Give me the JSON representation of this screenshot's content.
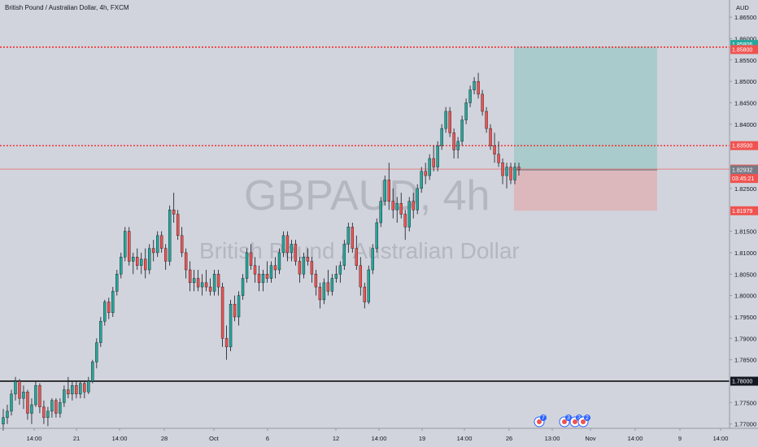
{
  "header": {
    "title": "British Pound / Australian Dollar, 4h, FXCM"
  },
  "watermark": {
    "symbol": "GBPAUD, 4h",
    "name": "British Pound / Australian Dollar"
  },
  "currency": "AUD",
  "colors": {
    "bg": "#d1d4dc",
    "up": "#26a69a",
    "down": "#ef5350",
    "wick": "#131722",
    "level": "#ff0000",
    "support": "#000000",
    "target_zone": "#a9cbcb",
    "stop_zone": "#dcb8bd"
  },
  "chart_data": {
    "type": "candlestick",
    "symbol": "GBPAUD",
    "timeframe": "4h",
    "ylim": [
      1.769,
      1.869
    ],
    "y_ticks": [
      1.77,
      1.775,
      1.785,
      1.79,
      1.795,
      1.8,
      1.805,
      1.81,
      1.815,
      1.825,
      1.83,
      1.84,
      1.845,
      1.85,
      1.855,
      1.86,
      1.865
    ],
    "y_tick_labels": [
      "1.77000",
      "1.77500",
      "1.78500",
      "1.79000",
      "1.79500",
      "1.80000",
      "1.80500",
      "1.81000",
      "1.81500",
      "1.82500",
      "1.83000",
      "1.84000",
      "1.84500",
      "1.85000",
      "1.85500",
      "1.86000",
      "1.86500"
    ],
    "x_labels": [
      "14:00",
      "21",
      "14:00",
      "28",
      "Oct",
      "6",
      "12",
      "14:00",
      "19",
      "14:00",
      "26",
      "13:00",
      "Nov",
      "14:00",
      "9",
      "14:00"
    ],
    "price_tags": [
      {
        "value": 1.85806,
        "label": "1.85806",
        "color": "#26a69a"
      },
      {
        "value": 1.858,
        "label": "1.85800",
        "color": "#ef5350"
      },
      {
        "value": 1.835,
        "label": "1.83500",
        "color": "#ef5350"
      },
      {
        "value": 1.82951,
        "label": "1.82951",
        "color": "#ef5350"
      },
      {
        "value": 1.82932,
        "label": "1.82932",
        "color": "#787b86"
      },
      {
        "value": 1.81979,
        "label": "1.81979",
        "color": "#ef5350"
      },
      {
        "value": 1.78,
        "label": "1.78000",
        "color": "#131722"
      }
    ],
    "countdown": "03:45:21",
    "horizontal_levels": [
      {
        "value": 1.858,
        "style": "dotted",
        "color": "#ff0000"
      },
      {
        "value": 1.835,
        "style": "dotted",
        "color": "#ff0000"
      },
      {
        "value": 1.82951,
        "style": "thin",
        "color": "#ef5350"
      },
      {
        "value": 1.78,
        "style": "solid",
        "color": "#000000"
      }
    ],
    "position": {
      "type": "long",
      "entry": 1.82932,
      "target": 1.85806,
      "stop": 1.81979
    },
    "event_markers": [
      {
        "label": "7"
      },
      {
        "label": "3"
      },
      {
        "label": "3"
      },
      {
        "label": "2"
      }
    ],
    "series_ohlc": [
      [
        1.77,
        1.7735,
        1.7685,
        1.7715
      ],
      [
        1.7715,
        1.7745,
        1.77,
        1.773
      ],
      [
        1.773,
        1.778,
        1.772,
        1.777
      ],
      [
        1.777,
        1.781,
        1.7755,
        1.78
      ],
      [
        1.78,
        1.7805,
        1.7745,
        1.776
      ],
      [
        1.776,
        1.779,
        1.7735,
        1.7775
      ],
      [
        1.7775,
        1.778,
        1.771,
        1.7725
      ],
      [
        1.7725,
        1.776,
        1.77,
        1.7745
      ],
      [
        1.7745,
        1.78,
        1.774,
        1.779
      ],
      [
        1.779,
        1.7795,
        1.7725,
        1.774
      ],
      [
        1.774,
        1.7755,
        1.77,
        1.7715
      ],
      [
        1.7715,
        1.774,
        1.7695,
        1.773
      ],
      [
        1.773,
        1.776,
        1.7715,
        1.7755
      ],
      [
        1.7755,
        1.776,
        1.7715,
        1.7725
      ],
      [
        1.7725,
        1.776,
        1.7715,
        1.775
      ],
      [
        1.775,
        1.779,
        1.774,
        1.778
      ],
      [
        1.778,
        1.781,
        1.776,
        1.777
      ],
      [
        1.777,
        1.78,
        1.7755,
        1.779
      ],
      [
        1.779,
        1.78,
        1.776,
        1.777
      ],
      [
        1.777,
        1.78,
        1.776,
        1.7795
      ],
      [
        1.7795,
        1.78,
        1.776,
        1.7775
      ],
      [
        1.7775,
        1.781,
        1.777,
        1.78
      ],
      [
        1.78,
        1.785,
        1.7795,
        1.7845
      ],
      [
        1.7845,
        1.79,
        1.783,
        1.789
      ],
      [
        1.789,
        1.795,
        1.788,
        1.794
      ],
      [
        1.794,
        1.799,
        1.793,
        1.7985
      ],
      [
        1.7985,
        1.7995,
        1.7945,
        1.796
      ],
      [
        1.796,
        1.802,
        1.795,
        1.801
      ],
      [
        1.801,
        1.806,
        1.8,
        1.805
      ],
      [
        1.805,
        1.81,
        1.804,
        1.809
      ],
      [
        1.809,
        1.816,
        1.808,
        1.815
      ],
      [
        1.815,
        1.816,
        1.807,
        1.808
      ],
      [
        1.808,
        1.81,
        1.805,
        1.809
      ],
      [
        1.809,
        1.811,
        1.806,
        1.807
      ],
      [
        1.807,
        1.81,
        1.805,
        1.8085
      ],
      [
        1.8085,
        1.811,
        1.804,
        1.806
      ],
      [
        1.806,
        1.812,
        1.805,
        1.811
      ],
      [
        1.811,
        1.813,
        1.808,
        1.81
      ],
      [
        1.81,
        1.815,
        1.809,
        1.814
      ],
      [
        1.814,
        1.815,
        1.81,
        1.811
      ],
      [
        1.811,
        1.812,
        1.806,
        1.808
      ],
      [
        1.808,
        1.821,
        1.807,
        1.82
      ],
      [
        1.82,
        1.824,
        1.817,
        1.819
      ],
      [
        1.819,
        1.82,
        1.813,
        1.814
      ],
      [
        1.814,
        1.816,
        1.809,
        1.81
      ],
      [
        1.81,
        1.811,
        1.804,
        1.806
      ],
      [
        1.806,
        1.808,
        1.801,
        1.803
      ],
      [
        1.803,
        1.806,
        1.801,
        1.804
      ],
      [
        1.804,
        1.806,
        1.801,
        1.802
      ],
      [
        1.802,
        1.805,
        1.8,
        1.803
      ],
      [
        1.803,
        1.806,
        1.801,
        1.802
      ],
      [
        1.802,
        1.804,
        1.8,
        1.801
      ],
      [
        1.801,
        1.806,
        1.8,
        1.805
      ],
      [
        1.805,
        1.806,
        1.8,
        1.802
      ],
      [
        1.802,
        1.803,
        1.788,
        1.79
      ],
      [
        1.79,
        1.793,
        1.785,
        1.788
      ],
      [
        1.788,
        1.799,
        1.787,
        1.798
      ],
      [
        1.798,
        1.8,
        1.794,
        1.795
      ],
      [
        1.795,
        1.801,
        1.793,
        1.8
      ],
      [
        1.8,
        1.805,
        1.799,
        1.804
      ],
      [
        1.804,
        1.811,
        1.803,
        1.81
      ],
      [
        1.81,
        1.812,
        1.806,
        1.807
      ],
      [
        1.807,
        1.809,
        1.803,
        1.805
      ],
      [
        1.805,
        1.807,
        1.801,
        1.803
      ],
      [
        1.803,
        1.806,
        1.801,
        1.805
      ],
      [
        1.805,
        1.808,
        1.803,
        1.804
      ],
      [
        1.804,
        1.808,
        1.803,
        1.807
      ],
      [
        1.807,
        1.809,
        1.804,
        1.806
      ],
      [
        1.806,
        1.811,
        1.805,
        1.81
      ],
      [
        1.81,
        1.815,
        1.809,
        1.814
      ],
      [
        1.814,
        1.815,
        1.808,
        1.81
      ],
      [
        1.81,
        1.813,
        1.808,
        1.812
      ],
      [
        1.812,
        1.813,
        1.807,
        1.808
      ],
      [
        1.808,
        1.809,
        1.803,
        1.805
      ],
      [
        1.805,
        1.81,
        1.804,
        1.809
      ],
      [
        1.809,
        1.811,
        1.807,
        1.808
      ],
      [
        1.808,
        1.809,
        1.803,
        1.805
      ],
      [
        1.805,
        1.806,
        1.8,
        1.802
      ],
      [
        1.802,
        1.803,
        1.797,
        1.799
      ],
      [
        1.799,
        1.804,
        1.798,
        1.803
      ],
      [
        1.803,
        1.806,
        1.8,
        1.801
      ],
      [
        1.801,
        1.805,
        1.8,
        1.804
      ],
      [
        1.804,
        1.807,
        1.803,
        1.805
      ],
      [
        1.805,
        1.808,
        1.803,
        1.807
      ],
      [
        1.807,
        1.813,
        1.806,
        1.812
      ],
      [
        1.812,
        1.817,
        1.81,
        1.816
      ],
      [
        1.816,
        1.817,
        1.81,
        1.811
      ],
      [
        1.811,
        1.814,
        1.806,
        1.807
      ],
      [
        1.807,
        1.809,
        1.8,
        1.802
      ],
      [
        1.802,
        1.803,
        1.797,
        1.7985
      ],
      [
        1.7985,
        1.807,
        1.798,
        1.806
      ],
      [
        1.806,
        1.812,
        1.805,
        1.811
      ],
      [
        1.811,
        1.818,
        1.81,
        1.817
      ],
      [
        1.817,
        1.823,
        1.816,
        1.822
      ],
      [
        1.822,
        1.828,
        1.821,
        1.827
      ],
      [
        1.827,
        1.831,
        1.82,
        1.822
      ],
      [
        1.822,
        1.825,
        1.818,
        1.82
      ],
      [
        1.82,
        1.823,
        1.817,
        1.8215
      ],
      [
        1.8215,
        1.824,
        1.818,
        1.819
      ],
      [
        1.819,
        1.82,
        1.813,
        1.816
      ],
      [
        1.816,
        1.823,
        1.815,
        1.822
      ],
      [
        1.822,
        1.824,
        1.818,
        1.82
      ],
      [
        1.82,
        1.826,
        1.819,
        1.825
      ],
      [
        1.825,
        1.83,
        1.824,
        1.829
      ],
      [
        1.829,
        1.831,
        1.826,
        1.828
      ],
      [
        1.828,
        1.833,
        1.827,
        1.832
      ],
      [
        1.832,
        1.835,
        1.829,
        1.83
      ],
      [
        1.83,
        1.836,
        1.829,
        1.835
      ],
      [
        1.835,
        1.84,
        1.834,
        1.839
      ],
      [
        1.839,
        1.844,
        1.838,
        1.843
      ],
      [
        1.843,
        1.844,
        1.837,
        1.838
      ],
      [
        1.838,
        1.839,
        1.832,
        1.834
      ],
      [
        1.834,
        1.837,
        1.832,
        1.836
      ],
      [
        1.836,
        1.842,
        1.835,
        1.841
      ],
      [
        1.841,
        1.846,
        1.84,
        1.845
      ],
      [
        1.845,
        1.849,
        1.844,
        1.848
      ],
      [
        1.848,
        1.851,
        1.847,
        1.85
      ],
      [
        1.85,
        1.852,
        1.846,
        1.847
      ],
      [
        1.847,
        1.848,
        1.842,
        1.843
      ],
      [
        1.843,
        1.844,
        1.838,
        1.839
      ],
      [
        1.839,
        1.84,
        1.834,
        1.835
      ],
      [
        1.835,
        1.838,
        1.831,
        1.833
      ],
      [
        1.833,
        1.836,
        1.83,
        1.831
      ],
      [
        1.831,
        1.832,
        1.826,
        1.828
      ],
      [
        1.828,
        1.831,
        1.825,
        1.83
      ],
      [
        1.83,
        1.831,
        1.826,
        1.827
      ],
      [
        1.827,
        1.831,
        1.826,
        1.83
      ],
      [
        1.83,
        1.831,
        1.828,
        1.8295
      ]
    ]
  }
}
